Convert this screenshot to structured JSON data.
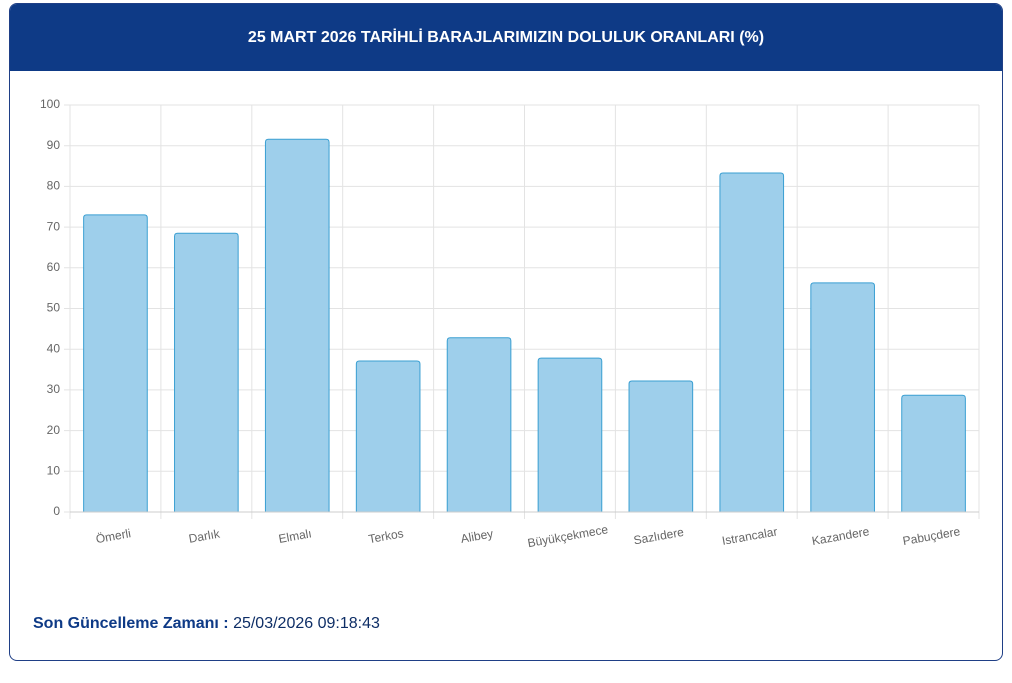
{
  "chart_data": {
    "type": "bar",
    "title": "25 MART 2026 TARİHLİ BARAJLARIMIZIN DOLULUK ORANLARI (%)",
    "categories": [
      "Ömerli",
      "Darlık",
      "Elmalı",
      "Terkos",
      "Alibey",
      "Büyükçekmece",
      "Sazlıdere",
      "Istrancalar",
      "Kazandere",
      "Pabuçdere"
    ],
    "values": [
      73.0,
      68.5,
      91.6,
      37.1,
      42.8,
      37.8,
      32.2,
      83.3,
      56.3,
      28.7
    ],
    "color": "#9ecfeb",
    "edge_color": "#3a9fd2",
    "ylim": [
      0,
      100
    ],
    "yticks": [
      0,
      10,
      20,
      30,
      40,
      50,
      60,
      70,
      80,
      90,
      100
    ],
    "grid": true
  },
  "footer": {
    "label": "Son Güncelleme Zamanı :",
    "value": "25/03/2026 09:18:43"
  }
}
